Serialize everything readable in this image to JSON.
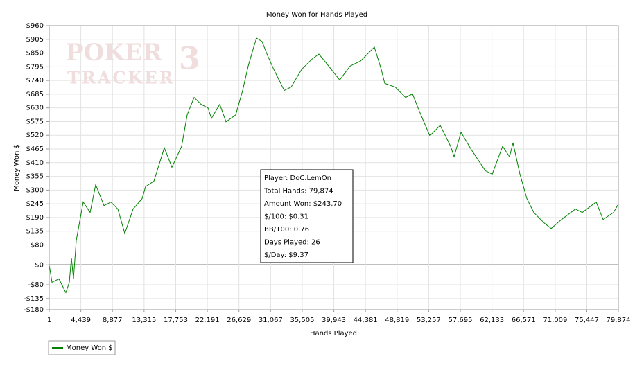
{
  "chart_data": {
    "type": "line",
    "title": "Money Won for Hands Played",
    "x_label": "Hands Played",
    "y_label": "Money Won $",
    "logo": [
      "POKER",
      "3",
      "TRACKER"
    ],
    "stats": [
      "Player: DoC.LemOn",
      "Total Hands: 79,874",
      "Amount Won: $243.70",
      "$/100: $0.31",
      "BB/100: 0.76",
      "Days Played: 26",
      "$/Day: $9.37"
    ],
    "grid": true,
    "xlim": [
      1,
      79874
    ],
    "ylim": [
      -180,
      960
    ],
    "xticks": [
      1,
      {
        "value": 4439,
        "label": "4,439"
      },
      {
        "value": 8877,
        "label": "8,877"
      },
      {
        "value": 13315,
        "label": "13,315"
      },
      {
        "value": 17753,
        "label": "17,753"
      },
      {
        "value": 22191,
        "label": "22,191"
      },
      {
        "value": 26629,
        "label": "26,629"
      },
      {
        "value": 31067,
        "label": "31,067"
      },
      {
        "value": 35505,
        "label": "35,505"
      },
      {
        "value": 39943,
        "label": "39,943"
      },
      {
        "value": 44381,
        "label": "44,381"
      },
      {
        "value": 48819,
        "label": "48,819"
      },
      {
        "value": 53257,
        "label": "53,257"
      },
      {
        "value": 57695,
        "label": "57,695"
      },
      {
        "value": 62133,
        "label": "62,133"
      },
      {
        "value": 66571,
        "label": "66,571"
      },
      {
        "value": 71009,
        "label": "71,009"
      },
      {
        "value": 75447,
        "label": "75,447"
      },
      {
        "value": 79874,
        "label": "79,874"
      }
    ],
    "yticks": [
      {
        "value": 960,
        "label": "$960"
      },
      {
        "value": 905,
        "label": "$905"
      },
      {
        "value": 850,
        "label": "$850"
      },
      {
        "value": 795,
        "label": "$795"
      },
      {
        "value": 740,
        "label": "$740"
      },
      {
        "value": 685,
        "label": "$685"
      },
      {
        "value": 630,
        "label": "$630"
      },
      {
        "value": 575,
        "label": "$575"
      },
      {
        "value": 520,
        "label": "$520"
      },
      {
        "value": 465,
        "label": "$465"
      },
      {
        "value": 410,
        "label": "$410"
      },
      {
        "value": 355,
        "label": "$355"
      },
      {
        "value": 300,
        "label": "$300"
      },
      {
        "value": 245,
        "label": "$245"
      },
      {
        "value": 190,
        "label": "$190"
      },
      {
        "value": 135,
        "label": "$135"
      },
      {
        "value": 80,
        "label": "$80"
      },
      {
        "value": 0,
        "label": "$0"
      },
      {
        "value": -80,
        "label": "-$80"
      },
      {
        "value": -135,
        "label": "-$135"
      },
      {
        "value": -180,
        "label": "-$180"
      }
    ],
    "x": [
      1,
      390,
      1363,
      2336,
      2822,
      3114,
      3406,
      3795,
      4768,
      5741,
      6519,
      7687,
      8660,
      9633,
      10606,
      11773,
      13038,
      13524,
      14691,
      15762,
      16151,
      17221,
      18583,
      19361,
      20334,
      21307,
      22280,
      22767,
      23934,
      24810,
      26172,
      27145,
      27923,
      28702,
      29091,
      29869,
      30647,
      31523,
      32982,
      33955,
      35415,
      36874,
      37847,
      38820,
      40766,
      42225,
      43685,
      45630,
      46603,
      47090,
      48549,
      50008,
      50981,
      51954,
      53414,
      54873,
      56332,
      56819,
      57792,
      59251,
      60224,
      61197,
      62170,
      63630,
      64603,
      65089,
      66062,
      67035,
      68008,
      69468,
      70441,
      71900,
      73846,
      74819,
      76765,
      77738,
      79197,
      79874
    ],
    "series": [
      {
        "name": "Money Won $",
        "color": "#008000",
        "values": [
          0,
          -70,
          -56,
          -112,
          -70,
          28,
          -56,
          98,
          252,
          210,
          322,
          238,
          252,
          224,
          126,
          224,
          266,
          314,
          336,
          434,
          470,
          392,
          476,
          602,
          672,
          644,
          630,
          588,
          644,
          574,
          602,
          700,
          798,
          874,
          910,
          896,
          840,
          784,
          700,
          714,
          784,
          826,
          846,
          812,
          742,
          798,
          818,
          874,
          784,
          728,
          714,
          672,
          686,
          616,
          518,
          560,
          476,
          434,
          532,
          462,
          420,
          378,
          364,
          476,
          434,
          490,
          364,
          266,
          210,
          168,
          146,
          182,
          224,
          210,
          252,
          182,
          210,
          243.7
        ]
      }
    ]
  }
}
